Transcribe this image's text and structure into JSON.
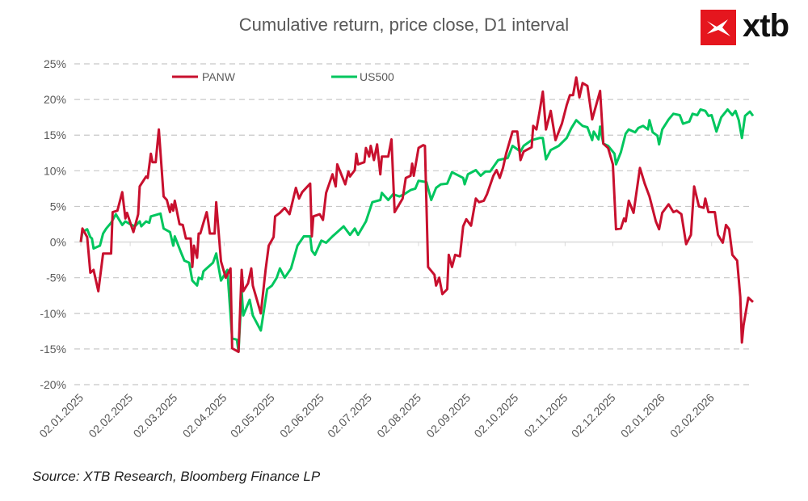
{
  "chart_data": {
    "type": "line",
    "title": "Cumulative return, price close, D1 interval",
    "source": "Source: XTB Research, Bloomberg Finance LP",
    "logo_text": "xtb",
    "x_unit": "days since 02.01.2025",
    "xlim": [
      0,
      422
    ],
    "ylim": [
      -20,
      25
    ],
    "y_ticks": [
      25,
      20,
      15,
      10,
      5,
      0,
      -5,
      -10,
      -15,
      -20
    ],
    "y_tick_labels": [
      "25%",
      "20%",
      "15%",
      "10%",
      "5%",
      "0%",
      "-5%",
      "-10%",
      "-15%",
      "-20%"
    ],
    "x_ticks": [
      0,
      31,
      59,
      90,
      120,
      151,
      181,
      212,
      243,
      273,
      304,
      334,
      365,
      396
    ],
    "x_tick_labels": [
      "02.01.2025",
      "02.02.2025",
      "02.03.2025",
      "02.04.2025",
      "02.05.2025",
      "02.06.2025",
      "02.07.2025",
      "02.08.2025",
      "02.09.2025",
      "02.10.2025",
      "02.11.2025",
      "02.12.2025",
      "02.01.2026",
      "02.02.2026"
    ],
    "grid": true,
    "legend_position": "top-left",
    "series": [
      {
        "name": "PANW",
        "color": "#c8102e",
        "x": [
          0,
          1,
          4,
          6,
          8,
          11,
          14,
          19,
          20,
          23,
          26,
          28,
          29,
          33,
          36,
          37,
          41,
          42,
          44,
          45,
          47,
          49,
          52,
          54,
          56,
          57,
          58,
          59,
          62,
          64,
          66,
          69,
          70,
          71,
          73,
          74,
          75,
          77,
          79,
          80,
          81,
          84,
          85,
          88,
          91,
          94,
          95,
          99,
          101,
          102,
          105,
          107,
          108,
          113,
          116,
          118,
          121,
          122,
          125,
          128,
          131,
          135,
          137,
          139,
          144,
          145,
          146,
          150,
          152,
          154,
          158,
          160,
          161,
          166,
          168,
          169,
          172,
          173,
          174,
          178,
          179,
          181,
          182,
          184,
          186,
          188,
          189,
          193,
          195,
          197,
          202,
          204,
          207,
          208,
          209,
          212,
          215,
          216,
          218,
          222,
          223,
          225,
          227,
          230,
          231,
          233,
          235,
          238,
          240,
          242,
          245,
          248,
          250,
          253,
          255,
          259,
          261,
          263,
          265,
          267,
          271,
          274,
          276,
          278,
          283,
          284,
          286,
          288,
          290,
          292,
          295,
          298,
          302,
          305,
          307,
          309,
          311,
          313,
          315,
          318,
          321,
          326,
          328,
          331,
          334,
          336,
          339,
          341,
          342,
          344,
          347,
          351,
          354,
          357,
          361,
          363,
          365,
          369,
          372,
          374,
          377,
          380,
          383,
          385,
          388,
          391,
          392,
          394,
          398,
          400,
          403,
          405,
          407,
          409,
          412,
          414,
          415,
          416,
          419,
          422
        ],
        "y": [
          0,
          1.9,
          0.7,
          -4.3,
          -3.9,
          -6.9,
          -1.6,
          -1.6,
          4.2,
          4.4,
          7.0,
          3.3,
          4.1,
          1.4,
          3.9,
          7.8,
          9.2,
          9.0,
          12.4,
          11.2,
          11.2,
          15.8,
          6.4,
          5.9,
          4.2,
          5.3,
          4.4,
          5.8,
          2.5,
          2.4,
          0.5,
          0.5,
          -3.5,
          -0.5,
          -2.2,
          1.2,
          1.2,
          2.7,
          4.2,
          2.9,
          1.2,
          1.2,
          5.6,
          -2.7,
          -5.0,
          -3.7,
          -14.9,
          -15.4,
          -3.9,
          -6.9,
          -5.8,
          -3.7,
          -6.1,
          -10.0,
          -3.9,
          -0.5,
          0.7,
          3.6,
          4.1,
          4.8,
          3.9,
          7.6,
          6.1,
          7.0,
          8.2,
          0.8,
          3.6,
          3.9,
          3.1,
          6.9,
          9.5,
          7.8,
          10.9,
          8.1,
          9.9,
          9.2,
          10.1,
          12.4,
          10.9,
          11.2,
          13.2,
          12.0,
          13.5,
          11.5,
          13.7,
          9.5,
          12.0,
          12.0,
          14.4,
          4.2,
          6.1,
          9.0,
          9.3,
          11.0,
          9.3,
          13.2,
          13.6,
          13.5,
          -3.5,
          -4.6,
          -6.1,
          -5.0,
          -7.3,
          -6.6,
          -1.8,
          -3.5,
          -1.8,
          -2.0,
          2.2,
          3.2,
          2.3,
          6.1,
          5.6,
          5.8,
          6.7,
          9.3,
          10.1,
          9.0,
          10.4,
          12.4,
          15.5,
          15.5,
          11.5,
          12.7,
          13.3,
          16.3,
          15.8,
          18.3,
          21.1,
          15.8,
          18.4,
          14.3,
          16.6,
          19.2,
          20.6,
          20.6,
          23.1,
          20.3,
          22.3,
          21.9,
          17.2,
          21.2,
          13.8,
          13.2,
          10.9,
          1.8,
          1.9,
          3.3,
          2.9,
          5.8,
          4.1,
          10.4,
          8.2,
          6.4,
          2.9,
          1.8,
          4.1,
          5.3,
          4.2,
          4.4,
          3.9,
          -0.3,
          1.0,
          7.8,
          5.0,
          4.8,
          6.1,
          4.2,
          4.2,
          1.0,
          -0.1,
          2.4,
          1.8,
          -1.8,
          -2.6,
          -7.7,
          -14.1,
          -11.7,
          -7.8,
          -8.4
        ]
      },
      {
        "name": "US500",
        "color": "#00c65e",
        "x": [
          0,
          1,
          4,
          6,
          7,
          8,
          12,
          14,
          16,
          19,
          22,
          26,
          28,
          31,
          34,
          37,
          38,
          41,
          43,
          44,
          50,
          52,
          56,
          58,
          59,
          63,
          65,
          68,
          70,
          73,
          74,
          76,
          77,
          80,
          83,
          85,
          88,
          92,
          95,
          98,
          99,
          101,
          102,
          106,
          108,
          113,
          117,
          120,
          123,
          125,
          128,
          132,
          136,
          140,
          144,
          145,
          147,
          151,
          154,
          158,
          161,
          165,
          169,
          172,
          174,
          179,
          183,
          188,
          189,
          193,
          196,
          200,
          203,
          207,
          210,
          212,
          217,
          220,
          223,
          226,
          230,
          233,
          240,
          241,
          243,
          248,
          251,
          254,
          257,
          262,
          268,
          271,
          276,
          278,
          283,
          288,
          290,
          292,
          295,
          300,
          305,
          308,
          311,
          315,
          318,
          321,
          322,
          325,
          326,
          328,
          331,
          335,
          336,
          339,
          342,
          344,
          348,
          350,
          353,
          356,
          357,
          359,
          362,
          363,
          365,
          369,
          372,
          376,
          378,
          382,
          384,
          387,
          389,
          392,
          394,
          396,
          399,
          402,
          406,
          409,
          411,
          413,
          415,
          417,
          420,
          422
        ],
        "y": [
          0,
          1.4,
          1.8,
          0.7,
          0.5,
          -0.9,
          -0.5,
          1.2,
          1.9,
          2.7,
          3.9,
          2.4,
          2.9,
          2.5,
          2.2,
          2.9,
          2.2,
          2.9,
          2.7,
          3.6,
          4.0,
          1.9,
          1.4,
          -0.5,
          0.8,
          -1.5,
          -2.6,
          -2.9,
          -5.4,
          -6.1,
          -5.0,
          -5.2,
          -4.1,
          -3.5,
          -2.9,
          -1.6,
          -5.4,
          -3.9,
          -13.5,
          -13.7,
          -15.4,
          -6.9,
          -10.3,
          -8.1,
          -10.3,
          -12.4,
          -6.6,
          -6.1,
          -5.0,
          -3.7,
          -5.0,
          -3.7,
          -0.5,
          0.8,
          0.8,
          -1.2,
          -1.8,
          0.2,
          -0.1,
          0.8,
          1.4,
          2.2,
          1.0,
          1.9,
          1.0,
          2.9,
          5.6,
          5.9,
          6.9,
          5.9,
          6.7,
          6.4,
          6.7,
          7.3,
          7.5,
          8.6,
          8.4,
          5.9,
          7.6,
          8.1,
          8.2,
          9.8,
          9.0,
          8.1,
          9.5,
          10.1,
          9.3,
          9.9,
          9.9,
          11.5,
          11.8,
          13.5,
          12.7,
          13.5,
          14.3,
          14.6,
          14.6,
          11.6,
          12.9,
          13.5,
          14.6,
          16.0,
          17.1,
          16.3,
          16.1,
          14.3,
          15.5,
          14.4,
          16.2,
          13.8,
          13.5,
          12.4,
          10.9,
          12.6,
          15.2,
          15.8,
          15.4,
          16.0,
          16.3,
          15.8,
          17.1,
          15.4,
          14.9,
          13.7,
          15.8,
          17.2,
          18.0,
          17.8,
          16.6,
          16.9,
          18.0,
          17.8,
          18.6,
          18.4,
          17.7,
          17.8,
          15.5,
          17.5,
          18.6,
          17.8,
          18.4,
          17.1,
          14.6,
          17.7,
          18.3,
          17.7
        ]
      }
    ]
  }
}
